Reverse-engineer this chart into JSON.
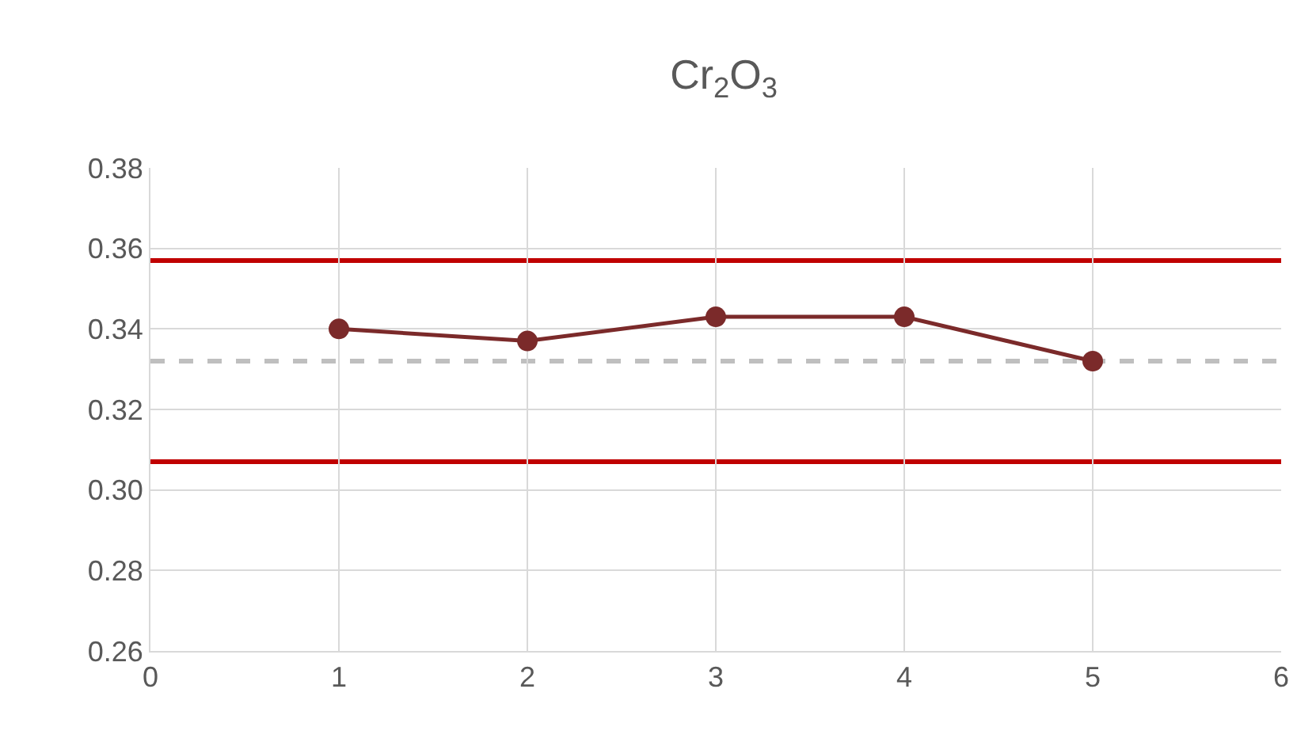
{
  "chart_data": {
    "type": "line",
    "title": "Cr$_{2}$O$_{3}$",
    "x": [
      1,
      2,
      3,
      4,
      5
    ],
    "series": [
      {
        "color": "#7b2a2a",
        "values": [
          0.34,
          0.337,
          0.343,
          0.343,
          0.332
        ]
      }
    ],
    "xlim": [
      0,
      6
    ],
    "xticks": [
      0,
      1,
      2,
      3,
      4,
      5,
      6
    ],
    "ylim": [
      0.26,
      0.38
    ],
    "yticks": [
      {
        "value": 0.26,
        "label": "0.26"
      },
      {
        "value": 0.28,
        "label": "0.28"
      },
      {
        "value": 0.3,
        "label": "0.30"
      },
      {
        "value": 0.32,
        "label": "0.32"
      },
      {
        "value": 0.34,
        "label": "0.34"
      },
      {
        "value": 0.36,
        "label": "0.36"
      },
      {
        "value": 0.38,
        "label": "0.38"
      }
    ],
    "ref_lines": [
      {
        "axis": "y",
        "value": 0.357,
        "color": "#c00000",
        "line_style": "solid"
      },
      {
        "axis": "y",
        "value": 0.307,
        "color": "#c00000",
        "line_style": "solid"
      },
      {
        "axis": "y",
        "value": 0.332,
        "color": "#bfbfbf",
        "line_style": "dashed"
      }
    ],
    "grid": true,
    "marker": "circle",
    "line_style": "solid"
  }
}
